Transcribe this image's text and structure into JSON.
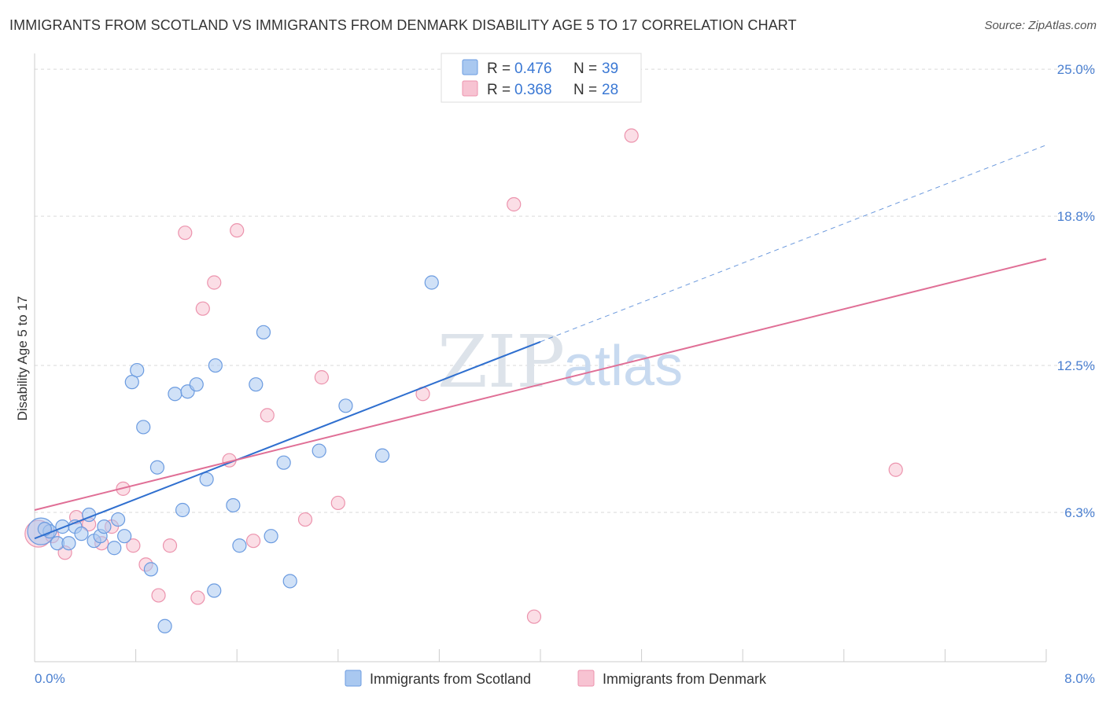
{
  "title": "IMMIGRANTS FROM SCOTLAND VS IMMIGRANTS FROM DENMARK DISABILITY AGE 5 TO 17 CORRELATION CHART",
  "source": "Source: ZipAtlas.com",
  "watermark": {
    "part1": "ZIP",
    "part2": "atlas"
  },
  "colors": {
    "scotland_fill": "#a9c8f0",
    "scotland_stroke": "#6b9be0",
    "scotland_line": "#2f6fcf",
    "denmark_fill": "#f7c3d2",
    "denmark_stroke": "#ec93ad",
    "denmark_line": "#e06f96",
    "tick_label": "#4a7fd0",
    "grid": "#d9d9d9"
  },
  "legend": {
    "r_label": "R = ",
    "n_label": "N = ",
    "scotland_r": "0.476",
    "scotland_n": "39",
    "denmark_r": "0.368",
    "denmark_n": "28"
  },
  "chart_data": {
    "type": "scatter",
    "xlabel": "",
    "ylabel": "Disability Age 5 to 17",
    "xlim": [
      0.0,
      8.0
    ],
    "ylim": [
      0.0,
      25.6
    ],
    "x_tick_labels": {
      "min": "0.0%",
      "max": "8.0%"
    },
    "y_ticks": [
      {
        "value": 6.3,
        "label": "6.3%"
      },
      {
        "value": 12.5,
        "label": "12.5%"
      },
      {
        "value": 18.8,
        "label": "18.8%"
      },
      {
        "value": 25.0,
        "label": "25.0%"
      }
    ],
    "grid": true,
    "legend_position": "top-center",
    "series": [
      {
        "name": "Immigrants from Scotland",
        "color": "#a9c8f0",
        "trend": {
          "x0": 0.0,
          "y0": 5.2,
          "x1": 4.0,
          "y1": 13.5,
          "dashed_to_x": 8.0,
          "dashed_to_y": 21.8
        },
        "points": [
          {
            "x": 0.05,
            "y": 5.5,
            "big": true
          },
          {
            "x": 0.12,
            "y": 5.5
          },
          {
            "x": 0.18,
            "y": 5.0
          },
          {
            "x": 0.22,
            "y": 5.7
          },
          {
            "x": 0.27,
            "y": 5.0
          },
          {
            "x": 0.32,
            "y": 5.7
          },
          {
            "x": 0.37,
            "y": 5.4
          },
          {
            "x": 0.43,
            "y": 6.2
          },
          {
            "x": 0.47,
            "y": 5.1
          },
          {
            "x": 0.52,
            "y": 5.3
          },
          {
            "x": 0.55,
            "y": 5.7
          },
          {
            "x": 0.63,
            "y": 4.8
          },
          {
            "x": 0.66,
            "y": 6.0
          },
          {
            "x": 0.71,
            "y": 5.3
          },
          {
            "x": 0.77,
            "y": 11.8
          },
          {
            "x": 0.81,
            "y": 12.3
          },
          {
            "x": 0.86,
            "y": 9.9
          },
          {
            "x": 0.92,
            "y": 3.9
          },
          {
            "x": 0.97,
            "y": 8.2
          },
          {
            "x": 1.03,
            "y": 1.5
          },
          {
            "x": 1.11,
            "y": 11.3
          },
          {
            "x": 1.17,
            "y": 6.4
          },
          {
            "x": 1.21,
            "y": 11.4
          },
          {
            "x": 1.28,
            "y": 11.7
          },
          {
            "x": 1.36,
            "y": 7.7
          },
          {
            "x": 1.42,
            "y": 3.0
          },
          {
            "x": 1.43,
            "y": 12.5
          },
          {
            "x": 1.57,
            "y": 6.6
          },
          {
            "x": 1.62,
            "y": 4.9
          },
          {
            "x": 1.75,
            "y": 11.7
          },
          {
            "x": 1.81,
            "y": 13.9
          },
          {
            "x": 1.87,
            "y": 5.3
          },
          {
            "x": 1.97,
            "y": 8.4
          },
          {
            "x": 2.02,
            "y": 3.4
          },
          {
            "x": 2.25,
            "y": 8.9
          },
          {
            "x": 2.46,
            "y": 10.8
          },
          {
            "x": 2.75,
            "y": 8.7
          },
          {
            "x": 3.14,
            "y": 16.0
          },
          {
            "x": 0.08,
            "y": 5.6
          }
        ]
      },
      {
        "name": "Immigrants from Denmark",
        "color": "#f7c3d2",
        "trend": {
          "x0": 0.0,
          "y0": 6.4,
          "x1": 8.0,
          "y1": 17.0
        },
        "points": [
          {
            "x": 0.03,
            "y": 5.4,
            "big": true
          },
          {
            "x": 0.14,
            "y": 5.3
          },
          {
            "x": 0.24,
            "y": 4.6
          },
          {
            "x": 0.33,
            "y": 6.1
          },
          {
            "x": 0.43,
            "y": 5.8
          },
          {
            "x": 0.53,
            "y": 5.0
          },
          {
            "x": 0.61,
            "y": 5.7
          },
          {
            "x": 0.7,
            "y": 7.3
          },
          {
            "x": 0.78,
            "y": 4.9
          },
          {
            "x": 0.88,
            "y": 4.1
          },
          {
            "x": 0.98,
            "y": 2.8
          },
          {
            "x": 1.07,
            "y": 4.9
          },
          {
            "x": 1.19,
            "y": 18.1
          },
          {
            "x": 1.29,
            "y": 2.7
          },
          {
            "x": 1.33,
            "y": 14.9
          },
          {
            "x": 1.42,
            "y": 16.0
          },
          {
            "x": 1.54,
            "y": 8.5
          },
          {
            "x": 1.6,
            "y": 18.2
          },
          {
            "x": 1.73,
            "y": 5.1
          },
          {
            "x": 1.84,
            "y": 10.4
          },
          {
            "x": 2.14,
            "y": 6.0
          },
          {
            "x": 2.27,
            "y": 12.0
          },
          {
            "x": 2.4,
            "y": 6.7
          },
          {
            "x": 3.07,
            "y": 11.3
          },
          {
            "x": 3.79,
            "y": 19.3
          },
          {
            "x": 3.95,
            "y": 1.9
          },
          {
            "x": 4.72,
            "y": 22.2
          },
          {
            "x": 6.81,
            "y": 8.1
          }
        ]
      }
    ]
  }
}
